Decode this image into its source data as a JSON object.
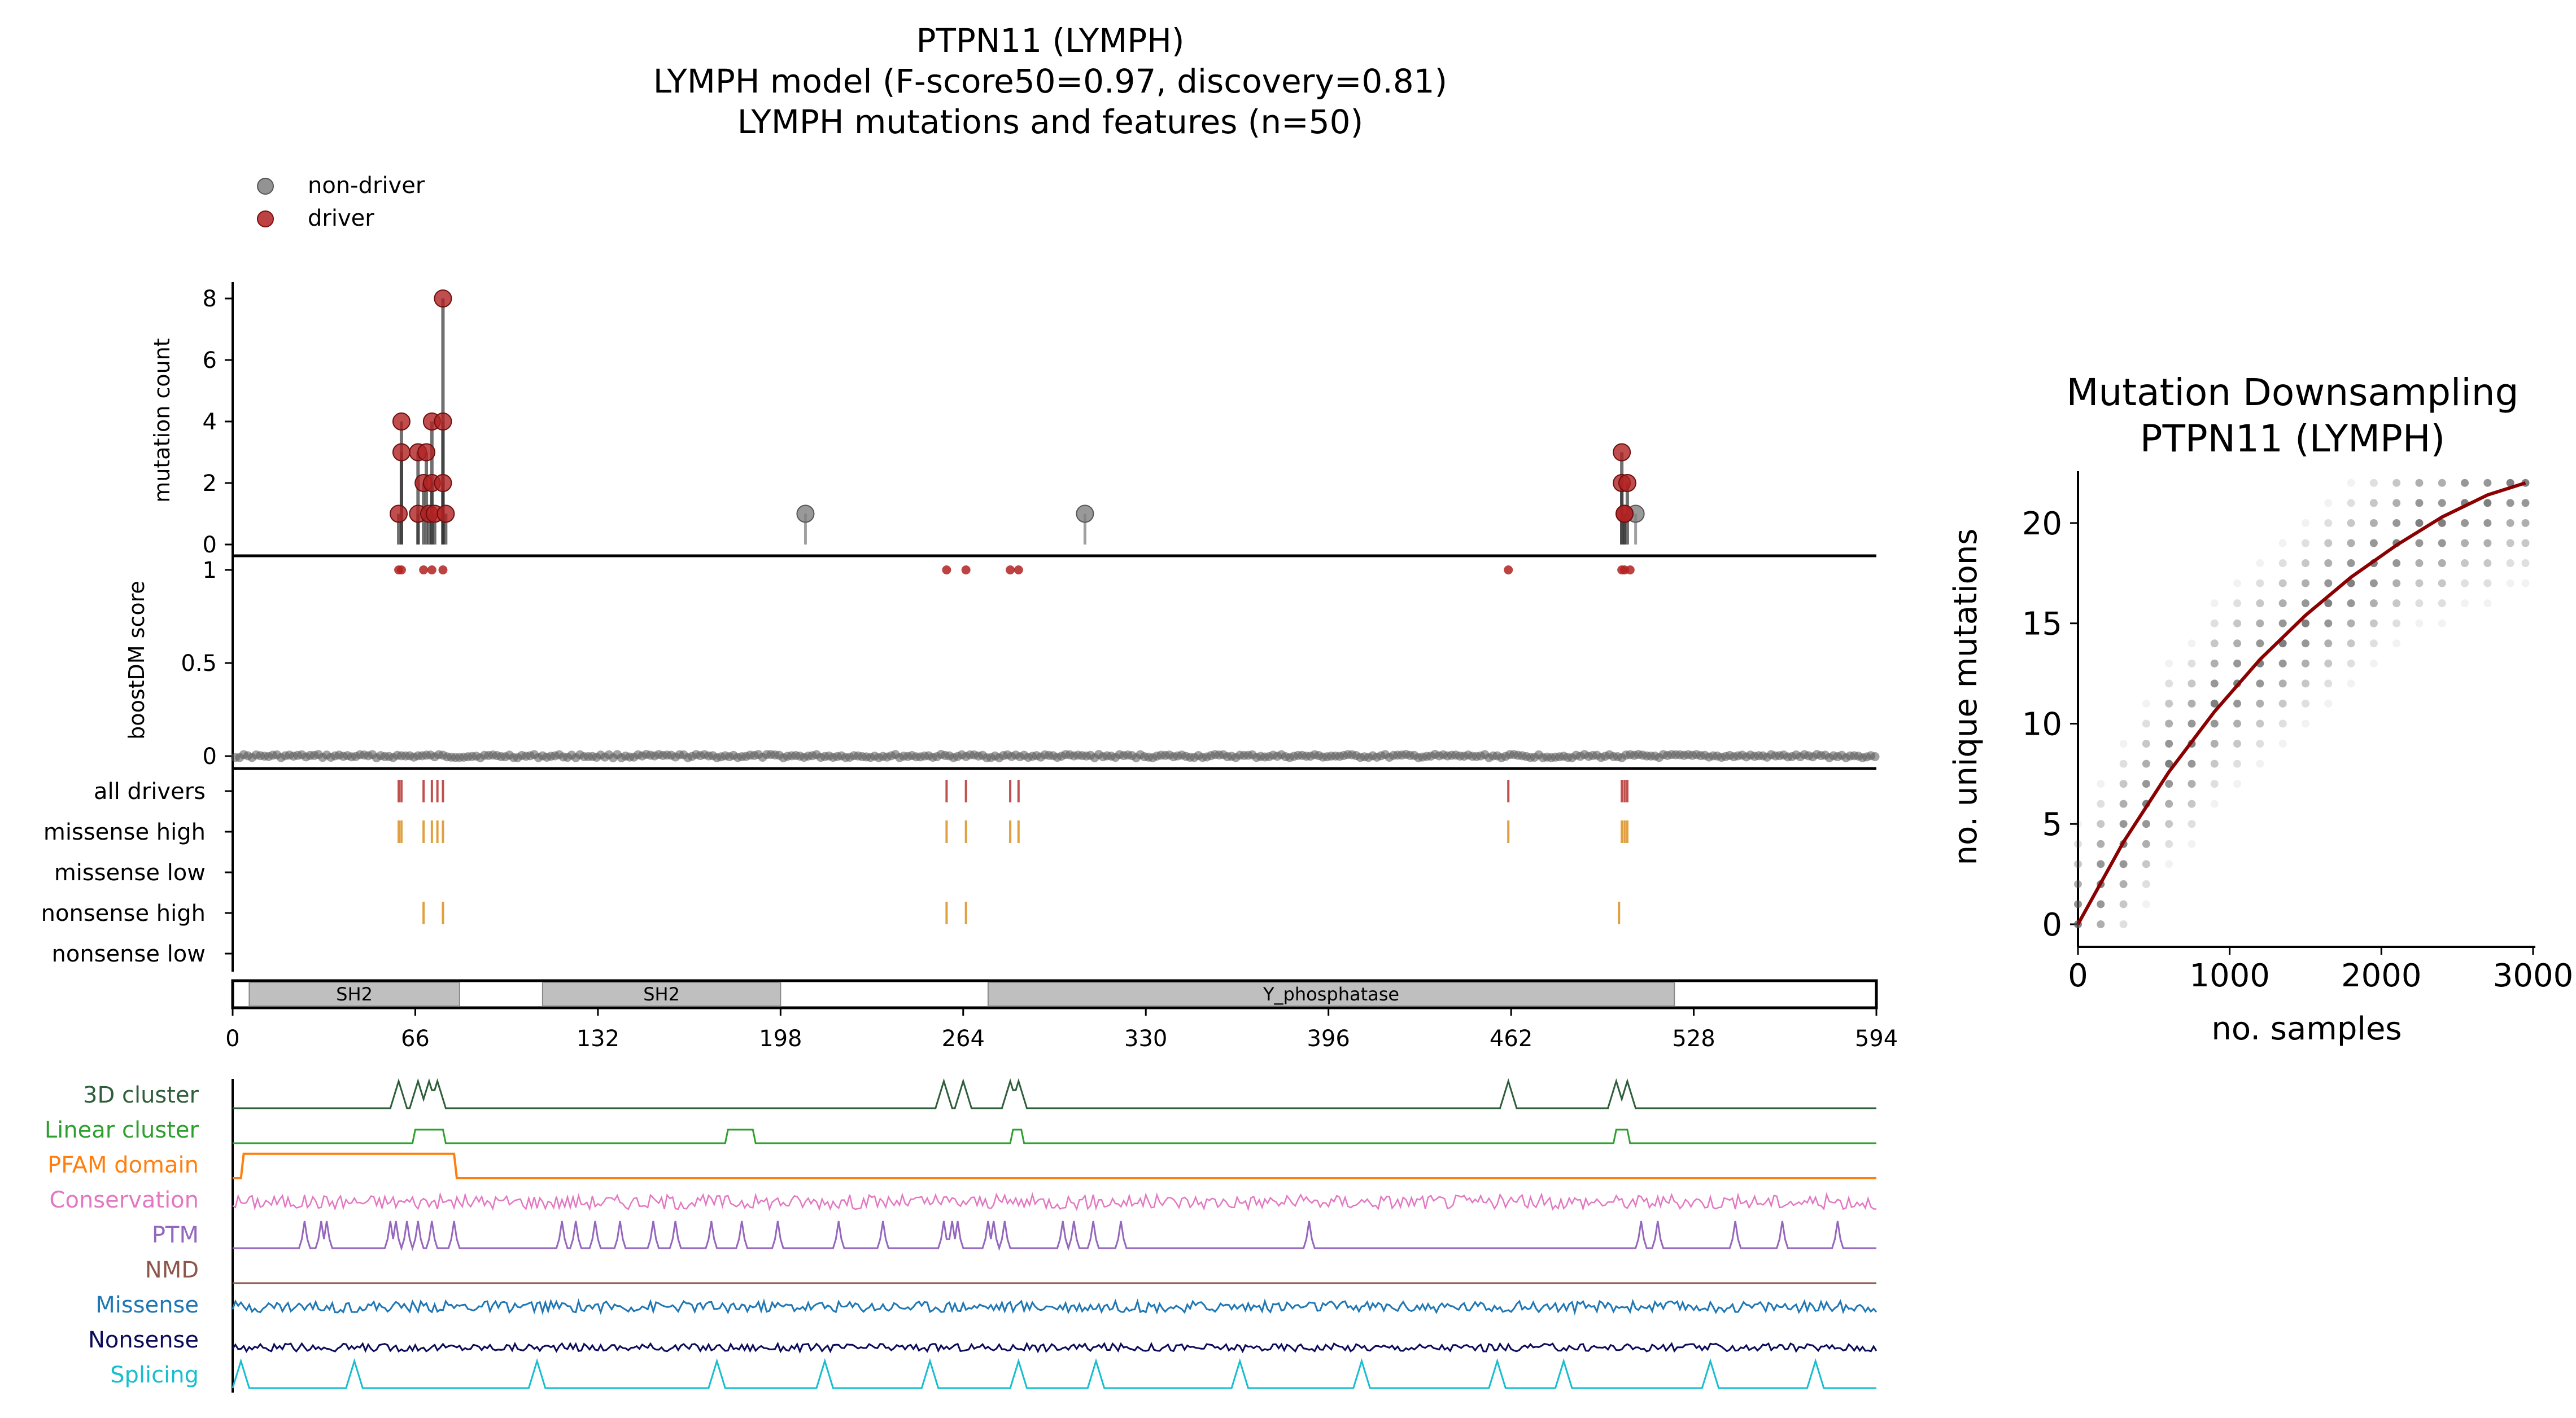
{
  "main_title": {
    "line1": "PTPN11 (LYMPH)",
    "line2": "LYMPH model (F-score50=0.97, discovery=0.81)",
    "line3": "LYMPH mutations and features (n=50)"
  },
  "legend": {
    "non_driver": "non-driver",
    "driver": "driver"
  },
  "colors": {
    "driver": "#b22222",
    "non_driver": "#808080",
    "track_drivers": "#c0504d",
    "track_consequence": "#e0a040",
    "domain_fill": "#bfbfbf",
    "fit_line": "#8b0000"
  },
  "chart_data": [
    {
      "type": "scatter",
      "subtype": "lollipop",
      "ylabel": "mutation count",
      "ylim": [
        0,
        8
      ],
      "yticks": [
        "0",
        "2",
        "4",
        "6",
        "8"
      ],
      "xlim": [
        0,
        594
      ],
      "driver_points": [
        {
          "x": 60,
          "y": 1
        },
        {
          "x": 61,
          "y": 4
        },
        {
          "x": 61,
          "y": 3
        },
        {
          "x": 67,
          "y": 3
        },
        {
          "x": 67,
          "y": 1
        },
        {
          "x": 69,
          "y": 2
        },
        {
          "x": 70,
          "y": 3
        },
        {
          "x": 71,
          "y": 1
        },
        {
          "x": 72,
          "y": 2
        },
        {
          "x": 72,
          "y": 4
        },
        {
          "x": 73,
          "y": 1
        },
        {
          "x": 76,
          "y": 8
        },
        {
          "x": 76,
          "y": 2
        },
        {
          "x": 77,
          "y": 1
        },
        {
          "x": 76,
          "y": 4
        },
        {
          "x": 502,
          "y": 3
        },
        {
          "x": 502,
          "y": 2
        },
        {
          "x": 503,
          "y": 1
        },
        {
          "x": 504,
          "y": 2
        },
        {
          "x": 503,
          "y": 1
        }
      ],
      "non_driver_points": [
        {
          "x": 207,
          "y": 1
        },
        {
          "x": 308,
          "y": 1
        },
        {
          "x": 507,
          "y": 1
        }
      ]
    },
    {
      "type": "scatter",
      "ylabel": "boostDM score",
      "ylim": [
        0,
        1
      ],
      "yticks": [
        "0",
        "0.5",
        "1"
      ],
      "xlim": [
        0,
        594
      ],
      "high_points": [
        60,
        61,
        69,
        72,
        76,
        258,
        265,
        281,
        284,
        461,
        502,
        503,
        505
      ],
      "baseline_value": 0
    },
    {
      "type": "table",
      "subtype": "position tracks",
      "rows": [
        "all drivers",
        "missense high",
        "missense low",
        "nonsense high",
        "nonsense low"
      ],
      "all_drivers": [
        60,
        61,
        69,
        72,
        74,
        76,
        258,
        265,
        281,
        284,
        461,
        502,
        503,
        504
      ],
      "missense_high": [
        60,
        61,
        69,
        72,
        74,
        76,
        258,
        265,
        281,
        284,
        461,
        502,
        503,
        504
      ],
      "missense_low": [],
      "nonsense_high": [
        69,
        76,
        258,
        265,
        501
      ],
      "nonsense_low": []
    },
    {
      "type": "bar",
      "subtype": "domain track",
      "domains": [
        {
          "name": "SH2",
          "start": 6,
          "end": 82
        },
        {
          "name": "SH2",
          "start": 112,
          "end": 198
        },
        {
          "name": "Y_phosphatase",
          "start": 273,
          "end": 521
        }
      ],
      "xticks": [
        "0",
        "66",
        "132",
        "198",
        "264",
        "330",
        "396",
        "462",
        "528",
        "594"
      ],
      "xlim": [
        0,
        594
      ]
    },
    {
      "type": "line",
      "subtype": "feature tracks",
      "tracks": [
        {
          "name": "3D cluster",
          "color": "#2e5e3a"
        },
        {
          "name": "Linear cluster",
          "color": "#2ca02c"
        },
        {
          "name": "PFAM domain",
          "color": "#ff7f0e"
        },
        {
          "name": "Conservation",
          "color": "#e377c2"
        },
        {
          "name": "PTM",
          "color": "#9467bd"
        },
        {
          "name": "NMD",
          "color": "#8c564b"
        },
        {
          "name": "Missense",
          "color": "#1f77b4"
        },
        {
          "name": "Nonsense",
          "color": "#0b0b5a"
        },
        {
          "name": "Splicing",
          "color": "#17becf"
        }
      ],
      "cluster3d_peaks": [
        60,
        67,
        71,
        74,
        257,
        264,
        281,
        284,
        461,
        500,
        504
      ],
      "linear_cluster_ranges": [
        [
          67,
          75
        ],
        [
          180,
          187
        ],
        [
          283,
          284
        ],
        [
          501,
          503
        ]
      ],
      "pfam_range": [
        4,
        80
      ],
      "ptm_positions": [
        26,
        32,
        34,
        57,
        59,
        63,
        67,
        72,
        80,
        119,
        124,
        131,
        140,
        152,
        160,
        173,
        184,
        197,
        219,
        235,
        257,
        260,
        262,
        273,
        275,
        279,
        300,
        304,
        311,
        321,
        389,
        509,
        515,
        543,
        560,
        580
      ],
      "splicing_peaks": [
        3,
        44,
        110,
        175,
        214,
        252,
        284,
        312,
        364,
        408,
        457,
        481,
        534,
        572
      ]
    },
    {
      "type": "scatter",
      "title": "Mutation Downsampling",
      "subtitle": "PTPN11 (LYMPH)",
      "xlabel": "no. samples",
      "ylabel": "no. unique mutations",
      "xlim": [
        0,
        3000
      ],
      "ylim": [
        0,
        23
      ],
      "xticks": [
        "0",
        "1000",
        "2000",
        "3000"
      ],
      "yticks": [
        "0",
        "5",
        "10",
        "15",
        "20"
      ],
      "sample_points_x": [
        0,
        150,
        300,
        450,
        600,
        750,
        900,
        1050,
        1200,
        1350,
        1500,
        1650,
        1800,
        1950,
        2100,
        2250,
        2400,
        2550,
        2700,
        2850,
        2950
      ],
      "fit_curve": [
        {
          "x": 0,
          "y": 0
        },
        {
          "x": 300,
          "y": 4.1
        },
        {
          "x": 600,
          "y": 7.6
        },
        {
          "x": 900,
          "y": 10.6
        },
        {
          "x": 1200,
          "y": 13.2
        },
        {
          "x": 1500,
          "y": 15.4
        },
        {
          "x": 1800,
          "y": 17.3
        },
        {
          "x": 2100,
          "y": 18.9
        },
        {
          "x": 2400,
          "y": 20.3
        },
        {
          "x": 2700,
          "y": 21.4
        },
        {
          "x": 2950,
          "y": 22.0
        }
      ]
    }
  ]
}
